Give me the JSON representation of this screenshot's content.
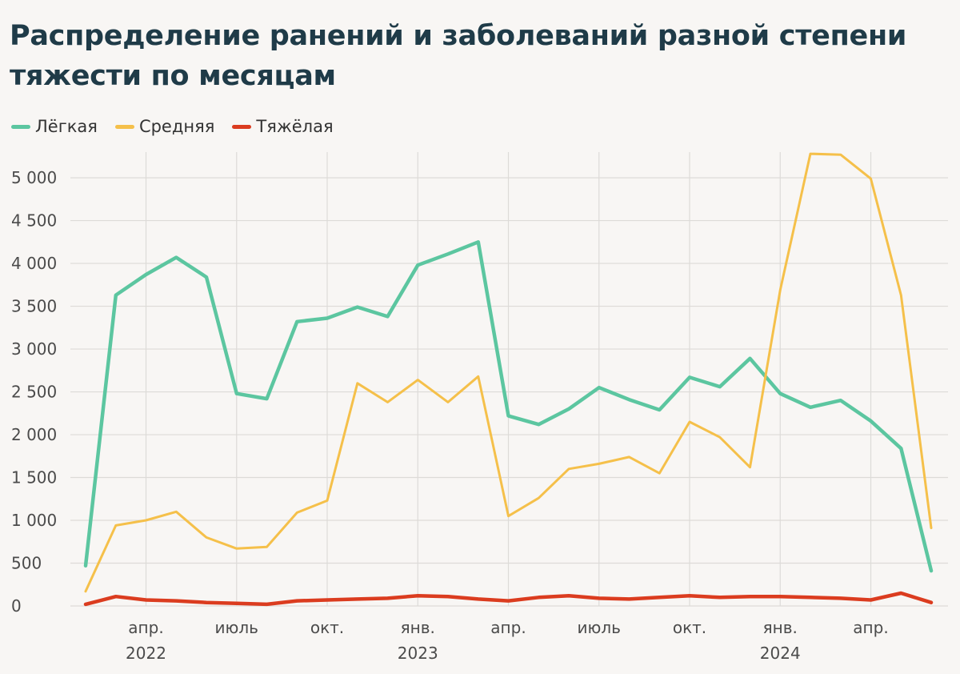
{
  "chart_data": {
    "type": "line",
    "title": "Распределение ранений и заболеваний разной степени тяжести по месяцам",
    "xlabel": "",
    "ylabel": "",
    "ylim": [
      0,
      5300
    ],
    "yticks": [
      0,
      500,
      1000,
      1500,
      2000,
      2500,
      3000,
      3500,
      4000,
      4500,
      5000
    ],
    "ytick_labels": [
      "0",
      "500",
      "1 000",
      "1 500",
      "2 000",
      "2 500",
      "3 000",
      "3 500",
      "4 000",
      "4 500",
      "5 000"
    ],
    "grid": true,
    "legend_position": "top-left",
    "x_months": [
      "2022-02",
      "2022-03",
      "2022-04",
      "2022-05",
      "2022-06",
      "2022-07",
      "2022-08",
      "2022-09",
      "2022-10",
      "2022-11",
      "2022-12",
      "2023-01",
      "2023-02",
      "2023-03",
      "2023-04",
      "2023-05",
      "2023-06",
      "2023-07",
      "2023-08",
      "2023-09",
      "2023-10",
      "2023-11",
      "2023-12",
      "2024-01",
      "2024-02",
      "2024-03",
      "2024-04",
      "2024-05",
      "2024-06"
    ],
    "xticks": [
      {
        "index": 2,
        "label": "апр.",
        "year": "2022"
      },
      {
        "index": 5,
        "label": "июль",
        "year": ""
      },
      {
        "index": 8,
        "label": "окт.",
        "year": ""
      },
      {
        "index": 11,
        "label": "янв.",
        "year": "2023"
      },
      {
        "index": 14,
        "label": "апр.",
        "year": ""
      },
      {
        "index": 17,
        "label": "июль",
        "year": ""
      },
      {
        "index": 20,
        "label": "окт.",
        "year": ""
      },
      {
        "index": 23,
        "label": "янв.",
        "year": "2024"
      },
      {
        "index": 26,
        "label": "апр.",
        "year": ""
      }
    ],
    "series": [
      {
        "name": "Лёгкая",
        "color": "#5cc6a0",
        "values": [
          470,
          3630,
          3870,
          4070,
          3840,
          2480,
          2420,
          3320,
          3360,
          3490,
          3380,
          3980,
          4110,
          4250,
          2220,
          2120,
          2300,
          2550,
          2410,
          2290,
          2670,
          2560,
          2890,
          2480,
          2320,
          2400,
          2160,
          1840,
          410
        ]
      },
      {
        "name": "Средняя",
        "color": "#f5c04a",
        "values": [
          170,
          940,
          1000,
          1100,
          800,
          670,
          690,
          1090,
          1230,
          2600,
          2380,
          2640,
          2380,
          2680,
          1050,
          1260,
          1600,
          1660,
          1740,
          1550,
          2150,
          1970,
          1620,
          3690,
          5280,
          5270,
          4990,
          3630,
          910
        ]
      },
      {
        "name": "Тяжёлая",
        "color": "#db3c1f",
        "values": [
          20,
          110,
          70,
          60,
          40,
          30,
          20,
          60,
          70,
          80,
          90,
          120,
          110,
          80,
          60,
          100,
          120,
          90,
          80,
          100,
          120,
          100,
          110,
          110,
          100,
          90,
          70,
          150,
          40
        ]
      }
    ]
  }
}
